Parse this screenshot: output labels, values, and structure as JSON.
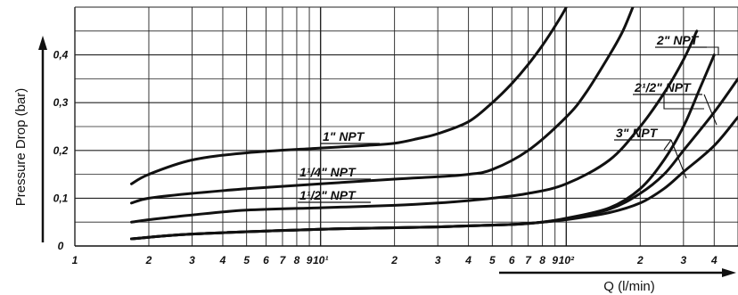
{
  "chart_data": {
    "type": "line",
    "title": "",
    "xlabel": "Q (l/min)",
    "ylabel": "Pressure Drop (bar)",
    "xscale": "log",
    "xlim": [
      1,
      500
    ],
    "ylim": [
      0,
      0.5
    ],
    "grid": true,
    "x_ticks": [
      {
        "value": 1,
        "label": "1"
      },
      {
        "value": 2,
        "label": "2"
      },
      {
        "value": 3,
        "label": "3"
      },
      {
        "value": 4,
        "label": "4"
      },
      {
        "value": 5,
        "label": "5"
      },
      {
        "value": 6,
        "label": "6"
      },
      {
        "value": 7,
        "label": "7"
      },
      {
        "value": 8,
        "label": "8"
      },
      {
        "value": 9,
        "label": "9"
      },
      {
        "value": 10,
        "label": "10¹"
      },
      {
        "value": 20,
        "label": "2"
      },
      {
        "value": 30,
        "label": "3"
      },
      {
        "value": 40,
        "label": "4"
      },
      {
        "value": 50,
        "label": "5"
      },
      {
        "value": 60,
        "label": "6"
      },
      {
        "value": 70,
        "label": "7"
      },
      {
        "value": 80,
        "label": "8"
      },
      {
        "value": 90,
        "label": "9"
      },
      {
        "value": 100,
        "label": "10²"
      },
      {
        "value": 200,
        "label": "2"
      },
      {
        "value": 300,
        "label": "3"
      },
      {
        "value": 400,
        "label": "4"
      }
    ],
    "y_ticks": [
      {
        "value": 0,
        "label": "0"
      },
      {
        "value": 0.1,
        "label": "0,1"
      },
      {
        "value": 0.2,
        "label": "0,2"
      },
      {
        "value": 0.3,
        "label": "0,3"
      },
      {
        "value": 0.4,
        "label": "0,4"
      }
    ],
    "series": [
      {
        "name": "1\" NPT",
        "x": [
          1.7,
          2,
          3,
          5,
          10,
          15,
          20,
          25,
          30,
          40,
          50,
          60,
          70,
          80,
          90,
          100,
          110
        ],
        "y": [
          0.13,
          0.15,
          0.18,
          0.195,
          0.205,
          0.21,
          0.215,
          0.225,
          0.235,
          0.26,
          0.3,
          0.34,
          0.38,
          0.42,
          0.46,
          0.5,
          0.55
        ]
      },
      {
        "name": "1¹/4\" NPT",
        "x": [
          1.7,
          2,
          3,
          5,
          10,
          20,
          30,
          40,
          50,
          70,
          100,
          120,
          150,
          170,
          190
        ],
        "y": [
          0.09,
          0.1,
          0.11,
          0.12,
          0.13,
          0.14,
          0.145,
          0.15,
          0.16,
          0.2,
          0.27,
          0.32,
          0.4,
          0.45,
          0.51
        ]
      },
      {
        "name": "1¹/2\" NPT",
        "x": [
          1.7,
          2,
          3,
          5,
          10,
          20,
          30,
          40,
          50,
          70,
          100,
          150,
          200,
          250,
          300,
          340
        ],
        "y": [
          0.05,
          0.055,
          0.065,
          0.075,
          0.08,
          0.085,
          0.09,
          0.095,
          0.1,
          0.11,
          0.13,
          0.18,
          0.25,
          0.32,
          0.39,
          0.45
        ]
      },
      {
        "name": "2\" NPT",
        "x": [
          1.7,
          3,
          10,
          30,
          60,
          80,
          100,
          150,
          200,
          250,
          300,
          350,
          400
        ],
        "y": [
          0.015,
          0.025,
          0.035,
          0.04,
          0.045,
          0.05,
          0.058,
          0.08,
          0.12,
          0.18,
          0.25,
          0.33,
          0.4
        ]
      },
      {
        "name": "2¹/2\" NPT",
        "x": [
          1.7,
          3,
          10,
          30,
          60,
          80,
          100,
          150,
          200,
          250,
          300,
          400,
          500
        ],
        "y": [
          0.015,
          0.025,
          0.035,
          0.04,
          0.045,
          0.05,
          0.057,
          0.077,
          0.11,
          0.15,
          0.2,
          0.28,
          0.35
        ]
      },
      {
        "name": "3\" NPT",
        "x": [
          1.7,
          3,
          10,
          30,
          60,
          80,
          100,
          150,
          200,
          250,
          300,
          400,
          500
        ],
        "y": [
          0.015,
          0.025,
          0.035,
          0.04,
          0.045,
          0.05,
          0.055,
          0.07,
          0.09,
          0.12,
          0.155,
          0.21,
          0.27
        ]
      }
    ],
    "line_color": "#111111"
  }
}
